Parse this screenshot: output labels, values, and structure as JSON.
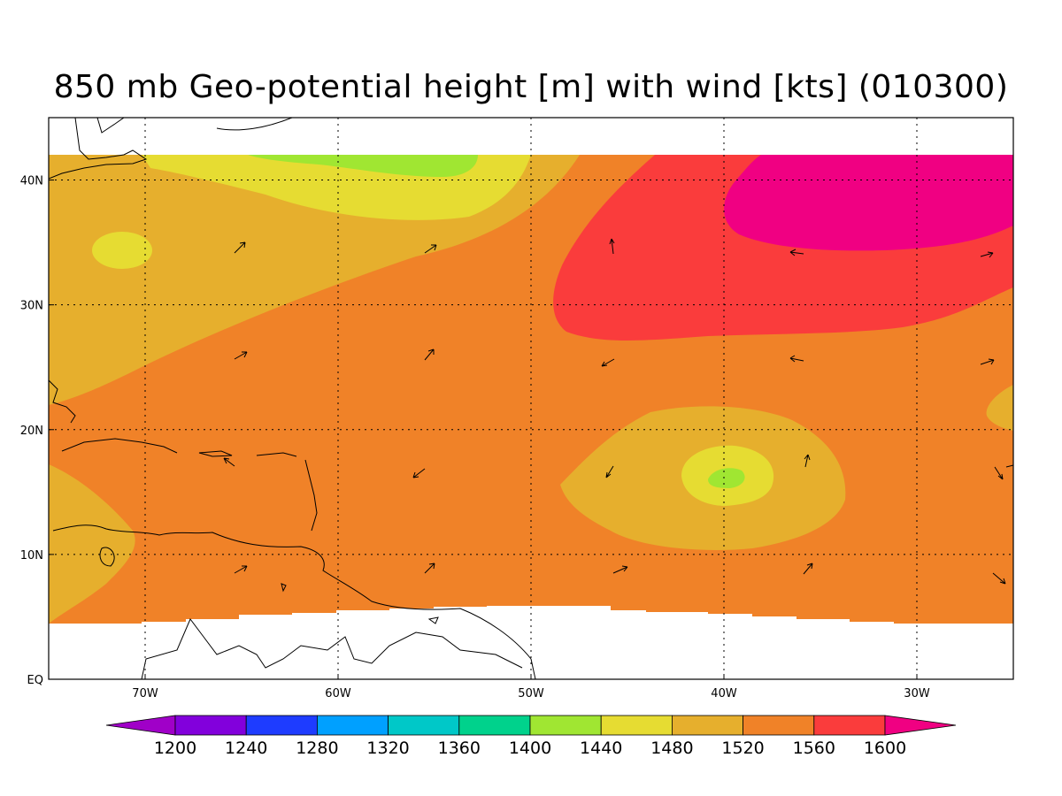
{
  "title": "850 mb Geo-potential height [m] with wind [kts] (010300)",
  "map": {
    "lon_range": [
      -75,
      -25
    ],
    "lat_range": [
      0,
      45
    ],
    "lon_ticks": [
      {
        "value": -70,
        "label": "70W"
      },
      {
        "value": -60,
        "label": "60W"
      },
      {
        "value": -50,
        "label": "50W"
      },
      {
        "value": -40,
        "label": "40W"
      },
      {
        "value": -30,
        "label": "30W"
      }
    ],
    "lat_ticks": [
      {
        "value": 0,
        "label": "EQ"
      },
      {
        "value": 10,
        "label": "10N"
      },
      {
        "value": 20,
        "label": "20N"
      },
      {
        "value": 30,
        "label": "30N"
      },
      {
        "value": 40,
        "label": "40N"
      }
    ],
    "grid": true
  },
  "colorbar": {
    "labels": [
      "1200",
      "1240",
      "1280",
      "1320",
      "1360",
      "1400",
      "1440",
      "1480",
      "1520",
      "1560",
      "1600"
    ],
    "colors": [
      "#a000c8",
      "#8200dc",
      "#1e3cff",
      "#00a0ff",
      "#00c8c8",
      "#00d28c",
      "#a0e632",
      "#e6dc32",
      "#e6af2d",
      "#f08228",
      "#fa3c3c",
      "#f00082"
    ]
  }
}
